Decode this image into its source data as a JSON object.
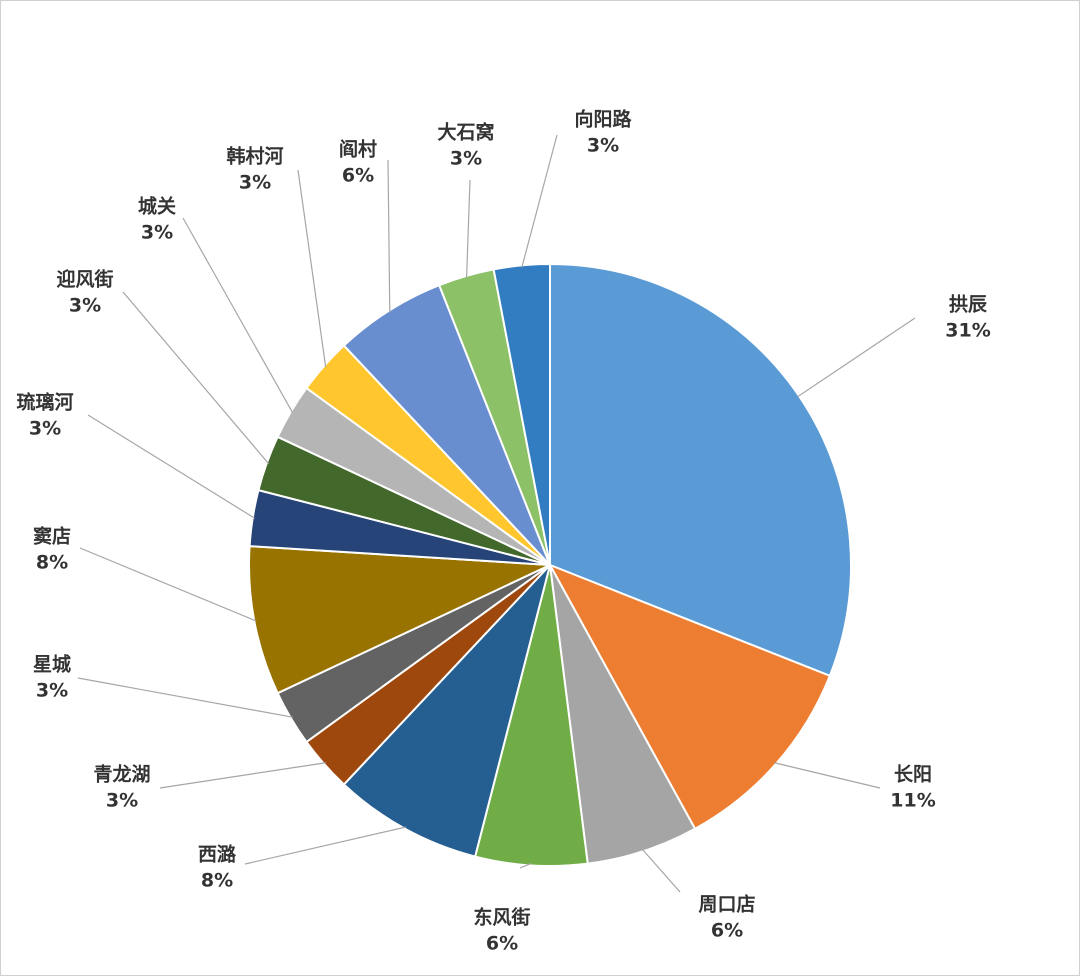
{
  "chart_data": {
    "type": "pie",
    "categories": [
      "拱辰",
      "长阳",
      "周口店",
      "东风街",
      "西潞",
      "青龙湖",
      "星城",
      "窦店",
      "琉璃河",
      "迎风街",
      "城关",
      "韩村河",
      "阎村",
      "大石窝",
      "向阳路"
    ],
    "values": [
      31,
      11,
      6,
      6,
      8,
      3,
      3,
      8,
      3,
      3,
      3,
      3,
      6,
      3,
      3
    ],
    "value_labels": [
      "31%",
      "11%",
      "6%",
      "6%",
      "8%",
      "3%",
      "3%",
      "8%",
      "3%",
      "3%",
      "3%",
      "3%",
      "6%",
      "3%",
      "3%"
    ],
    "colors": [
      "#5b9bd5",
      "#ed7d31",
      "#a5a5a5",
      "#70ad47",
      "#255e91",
      "#9e480e",
      "#636363",
      "#997300",
      "#264478",
      "#43682b",
      "#b5b5b5",
      "#ffc62e",
      "#698ed0",
      "#8cc168",
      "#327dc2"
    ]
  }
}
